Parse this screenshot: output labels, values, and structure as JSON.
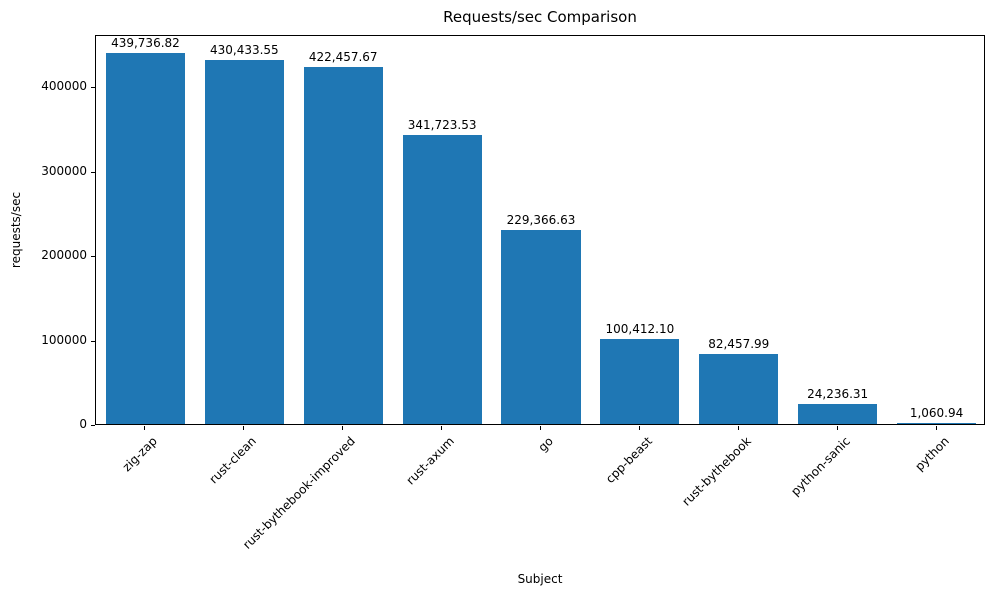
{
  "chart_data": {
    "type": "bar",
    "title": "Requests/sec Comparison",
    "xlabel": "Subject",
    "ylabel": "requests/sec",
    "categories": [
      "zig-zap",
      "rust-clean",
      "rust-bythebook-improved",
      "rust-axum",
      "go",
      "cpp-beast",
      "rust-bythebook",
      "python-sanic",
      "python"
    ],
    "values": [
      439736.82,
      430433.55,
      422457.67,
      341723.53,
      229366.63,
      100412.1,
      82457.99,
      24236.31,
      1060.94
    ],
    "value_labels": [
      "439,736.82",
      "430,433.55",
      "422,457.67",
      "341,723.53",
      "229,366.63",
      "100,412.10",
      "82,457.99",
      "24,236.31",
      "1,060.94"
    ],
    "bar_color": "#1f77b4",
    "ylim": [
      0,
      461723
    ],
    "yticks": [
      0,
      100000,
      200000,
      300000,
      400000
    ],
    "ytick_labels": [
      "0",
      "100000",
      "200000",
      "300000",
      "400000"
    ],
    "grid": false,
    "legend": null,
    "bar_width_fraction": 0.8
  }
}
